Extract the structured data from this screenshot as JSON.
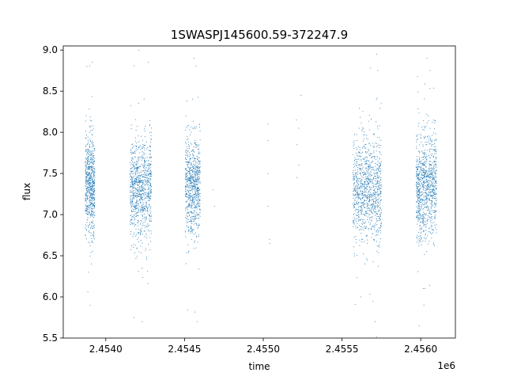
{
  "chart_data": {
    "type": "scatter",
    "title": "1SWASPJ145600.59-372247.9",
    "xlabel": "time",
    "ylabel": "flux",
    "x_offset_label": "1e6",
    "xlim": [
      2453730,
      2456220
    ],
    "ylim": [
      5.5,
      9.05
    ],
    "grid": false,
    "legend": "none",
    "color": "#1f77b4",
    "x_ticks": [
      {
        "value": 2454000,
        "label": "2.4540"
      },
      {
        "value": 2454500,
        "label": "2.4545"
      },
      {
        "value": 2455000,
        "label": "2.4550"
      },
      {
        "value": 2455500,
        "label": "2.4555"
      },
      {
        "value": 2456000,
        "label": "2.4560"
      }
    ],
    "y_ticks": [
      {
        "value": 5.5,
        "label": "5.5"
      },
      {
        "value": 6.0,
        "label": "6.0"
      },
      {
        "value": 6.5,
        "label": "6.5"
      },
      {
        "value": 7.0,
        "label": "7.0"
      },
      {
        "value": 7.5,
        "label": "7.5"
      },
      {
        "value": 8.0,
        "label": "8.0"
      },
      {
        "value": 8.5,
        "label": "8.5"
      },
      {
        "value": 9.0,
        "label": "9.0"
      }
    ],
    "seasons": [
      {
        "x_start": 2453870,
        "x_end": 2453930,
        "y_center": 7.35,
        "y_spread": 0.38,
        "count": 650
      },
      {
        "x_start": 2454155,
        "x_end": 2454290,
        "y_center": 7.3,
        "y_spread": 0.42,
        "count": 900
      },
      {
        "x_start": 2454505,
        "x_end": 2454600,
        "y_center": 7.35,
        "y_spread": 0.38,
        "count": 750
      },
      {
        "x_start": 2455570,
        "x_end": 2455750,
        "y_center": 7.3,
        "y_spread": 0.4,
        "count": 1000
      },
      {
        "x_start": 2455970,
        "x_end": 2456100,
        "y_center": 7.35,
        "y_spread": 0.42,
        "count": 950
      }
    ],
    "points": [
      {
        "x": 2455030,
        "y": 8.1
      },
      {
        "x": 2455030,
        "y": 7.9
      },
      {
        "x": 2455030,
        "y": 7.1
      },
      {
        "x": 2455030,
        "y": 7.5
      },
      {
        "x": 2455040,
        "y": 6.7
      },
      {
        "x": 2455040,
        "y": 6.65
      },
      {
        "x": 2455210,
        "y": 8.15
      },
      {
        "x": 2455215,
        "y": 7.85
      },
      {
        "x": 2455215,
        "y": 7.45
      },
      {
        "x": 2455225,
        "y": 8.05
      },
      {
        "x": 2455225,
        "y": 7.6
      },
      {
        "x": 2455240,
        "y": 8.45
      },
      {
        "x": 2454680,
        "y": 7.3
      },
      {
        "x": 2454690,
        "y": 7.1
      },
      {
        "x": 2453880,
        "y": 8.8
      },
      {
        "x": 2453890,
        "y": 6.3
      },
      {
        "x": 2453915,
        "y": 8.85
      },
      {
        "x": 2453900,
        "y": 5.9
      },
      {
        "x": 2454210,
        "y": 9.0
      },
      {
        "x": 2454180,
        "y": 5.75
      },
      {
        "x": 2454230,
        "y": 5.7
      },
      {
        "x": 2454270,
        "y": 8.85
      },
      {
        "x": 2454560,
        "y": 8.9
      },
      {
        "x": 2454580,
        "y": 5.7
      },
      {
        "x": 2455720,
        "y": 8.95
      },
      {
        "x": 2455620,
        "y": 6.0
      },
      {
        "x": 2455710,
        "y": 5.7
      },
      {
        "x": 2456040,
        "y": 8.9
      },
      {
        "x": 2456020,
        "y": 5.9
      },
      {
        "x": 2455990,
        "y": 5.65
      },
      {
        "x": 2456060,
        "y": 8.75
      }
    ]
  }
}
